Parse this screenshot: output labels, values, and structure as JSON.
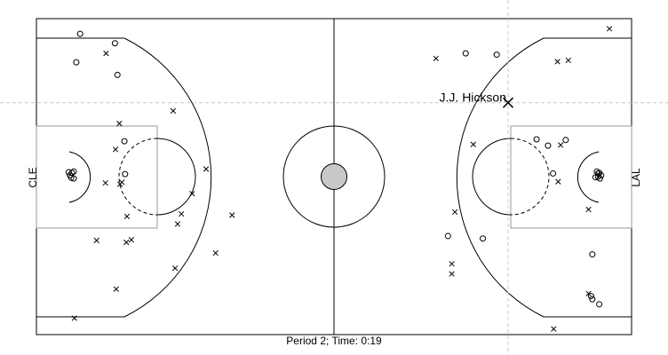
{
  "chart_data": {
    "type": "scatter",
    "title": "",
    "caption": "Period 2; Time: 0:19",
    "xlim": [
      0,
      94
    ],
    "ylim": [
      0,
      50
    ],
    "grid": false,
    "left_team": "CLE",
    "right_team": "LAL",
    "highlight": {
      "label": "J.J. Hickson",
      "x": 74.5,
      "y": 36.7,
      "marker": "x"
    },
    "crosshair": {
      "x": 74.5,
      "y": 36.7
    },
    "series": [
      {
        "marker": "o",
        "points": [
          [
            6.9,
            47.6
          ],
          [
            12.4,
            46.1
          ],
          [
            6.3,
            43.1
          ],
          [
            12.8,
            41.1
          ],
          [
            13.9,
            30.6
          ],
          [
            14.0,
            25.4
          ],
          [
            5.3,
            25.2
          ],
          [
            5.6,
            25.6
          ],
          [
            5.1,
            25.7
          ],
          [
            5.9,
            25.8
          ],
          [
            5.5,
            24.8
          ],
          [
            5.9,
            24.7
          ],
          [
            67.8,
            44.5
          ],
          [
            72.7,
            44.3
          ],
          [
            65.0,
            15.6
          ],
          [
            70.5,
            15.2
          ],
          [
            79.0,
            30.9
          ],
          [
            80.8,
            29.9
          ],
          [
            83.6,
            30.8
          ],
          [
            81.6,
            25.5
          ],
          [
            88.5,
            25.8
          ],
          [
            88.7,
            25.0
          ],
          [
            88.9,
            25.6
          ],
          [
            89.2,
            25.2
          ],
          [
            88.3,
            24.9
          ],
          [
            88.7,
            25.5
          ],
          [
            89.0,
            24.7
          ],
          [
            87.8,
            12.7
          ],
          [
            87.8,
            5.6
          ],
          [
            87.6,
            6.1
          ],
          [
            88.9,
            4.8
          ]
        ]
      },
      {
        "marker": "x",
        "points": [
          [
            11.0,
            44.5
          ],
          [
            13.1,
            33.4
          ],
          [
            21.6,
            35.4
          ],
          [
            12.5,
            29.3
          ],
          [
            10.9,
            24.0
          ],
          [
            13.2,
            23.8
          ],
          [
            13.5,
            24.1
          ],
          [
            26.8,
            26.2
          ],
          [
            24.6,
            22.3
          ],
          [
            14.3,
            18.7
          ],
          [
            22.9,
            19.1
          ],
          [
            22.3,
            17.5
          ],
          [
            30.9,
            18.9
          ],
          [
            9.5,
            14.9
          ],
          [
            14.2,
            14.6
          ],
          [
            15.0,
            15.0
          ],
          [
            28.3,
            12.9
          ],
          [
            21.9,
            10.5
          ],
          [
            12.6,
            7.2
          ],
          [
            6.0,
            2.6
          ],
          [
            90.5,
            48.4
          ],
          [
            63.1,
            43.7
          ],
          [
            82.3,
            43.2
          ],
          [
            84.0,
            43.4
          ],
          [
            69.0,
            30.1
          ],
          [
            82.8,
            30.0
          ],
          [
            82.4,
            24.2
          ],
          [
            87.2,
            19.8
          ],
          [
            66.1,
            19.4
          ],
          [
            65.6,
            11.2
          ],
          [
            65.6,
            9.6
          ],
          [
            87.2,
            6.5
          ],
          [
            81.7,
            0.9
          ]
        ]
      }
    ]
  }
}
